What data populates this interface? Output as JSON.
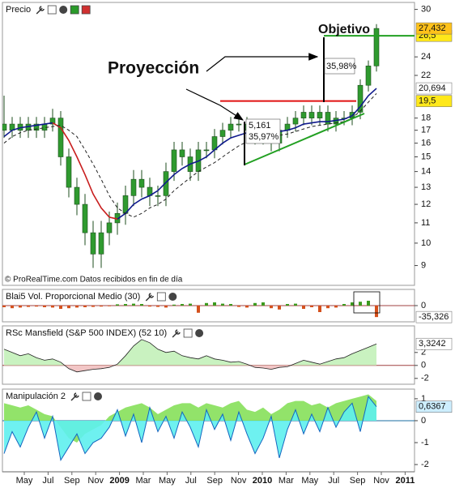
{
  "time_axis": [
    "May",
    "Jul",
    "Sep",
    "Nov",
    "2009",
    "Mar",
    "May",
    "Jul",
    "Sep",
    "Nov",
    "2010",
    "Mar",
    "May",
    "Jul",
    "Sep",
    "Nov",
    "2011"
  ],
  "chart_data": [
    {
      "type": "candlestick",
      "title": "Precio",
      "log_scale": true,
      "ylim": [
        8.2,
        31
      ],
      "yticks": [
        9,
        10,
        11,
        12,
        13,
        14,
        15,
        16,
        17,
        18,
        22,
        24,
        30
      ],
      "candles": {
        "color": "#2f9a2f",
        "open": [
          17.5,
          17,
          17.5,
          17,
          17.5,
          17,
          17.5,
          18,
          15,
          13,
          12,
          10.5,
          9.5,
          10.5,
          11,
          11.5,
          12.5,
          13.5,
          13,
          12.5,
          12.5,
          14,
          15.5,
          15,
          14,
          15.5,
          15.5,
          16.5,
          17,
          17.5,
          17.5,
          17,
          16.5,
          17,
          16,
          17,
          17.5,
          18,
          18.5,
          18,
          18.5,
          17.5,
          18,
          18,
          18.5,
          21,
          23
        ],
        "high": [
          20,
          18.1,
          18.1,
          18.1,
          18.1,
          18.1,
          18.8,
          18.6,
          15.6,
          13.6,
          12.6,
          11.1,
          11.1,
          11.6,
          12.1,
          13.1,
          14.1,
          14.1,
          13.6,
          13.1,
          14.6,
          16.1,
          16.1,
          15.6,
          16.1,
          16.1,
          17.1,
          17.6,
          18.1,
          18.1,
          18.1,
          17.6,
          17.6,
          17.6,
          17.6,
          18.1,
          18.6,
          19.1,
          19.1,
          19.1,
          19.1,
          18.6,
          18.6,
          19.1,
          21.6,
          23.6,
          28
        ],
        "low": [
          16.4,
          16.4,
          16.4,
          16.4,
          16.4,
          16.4,
          16.9,
          14.4,
          12.4,
          11.4,
          9.9,
          8.9,
          8.9,
          9.9,
          10.4,
          10.9,
          11.9,
          12.4,
          11.9,
          11.9,
          11.9,
          13.4,
          14.4,
          13.4,
          13.4,
          14.9,
          14.9,
          15.9,
          16.4,
          16.9,
          16.4,
          15.9,
          15.9,
          15.4,
          15.4,
          16.4,
          16.9,
          17.4,
          17.4,
          17.4,
          16.9,
          16.9,
          17.4,
          17.4,
          17.9,
          20.4,
          22.4
        ],
        "close": [
          17,
          17.5,
          17,
          17.5,
          17,
          17.5,
          18,
          15,
          13,
          12,
          10.5,
          9.5,
          10.5,
          11,
          11.5,
          12.5,
          13.5,
          13,
          12.5,
          12.5,
          14,
          15.5,
          15,
          14,
          15.5,
          15.5,
          16.5,
          17,
          17.5,
          17.5,
          17,
          16.5,
          17,
          16,
          17,
          17.5,
          18,
          18.5,
          18,
          18.5,
          17.5,
          18,
          18,
          18.5,
          21,
          23,
          27.432
        ],
        "value_labels": [
          null,
          null,
          null,
          null,
          null,
          null,
          null,
          null,
          null,
          null,
          null,
          null,
          null,
          null,
          null,
          null,
          null,
          null,
          null,
          null,
          null,
          null,
          null,
          null,
          null,
          null,
          null,
          null,
          null,
          null,
          null,
          null,
          null,
          null,
          null,
          null,
          null,
          null,
          null,
          null,
          null,
          null,
          null,
          null,
          null,
          null,
          "27,432"
        ]
      },
      "lines": [
        {
          "color": "#101a8c",
          "values": [
            16.5,
            17,
            17.2,
            17.3,
            17.4,
            17.5,
            17.6,
            null,
            null,
            null,
            null,
            null,
            null,
            null,
            11.2,
            11.5,
            12,
            12.3,
            12.5,
            12.8,
            13.3,
            13.8,
            14.2,
            14.5,
            14.7,
            15,
            15.5,
            16,
            16.4,
            16.6,
            16.8,
            16.8,
            16.8,
            16.8,
            16.9,
            17,
            17.2,
            17.5,
            17.6,
            17.7,
            17.7,
            17.8,
            17.9,
            18.2,
            19,
            20,
            20.694
          ],
          "value_labels": [
            null,
            null,
            null,
            null,
            null,
            null,
            null,
            null,
            null,
            null,
            null,
            null,
            null,
            null,
            null,
            null,
            null,
            null,
            null,
            null,
            null,
            null,
            null,
            null,
            null,
            null,
            null,
            null,
            null,
            null,
            null,
            null,
            null,
            null,
            null,
            null,
            null,
            null,
            null,
            null,
            null,
            null,
            null,
            null,
            null,
            null,
            "20,694"
          ]
        },
        {
          "color": "#c81e1e",
          "values": [
            null,
            null,
            null,
            null,
            null,
            null,
            17.6,
            17.2,
            16.2,
            15,
            13.8,
            12.6,
            11.8,
            11.3,
            11.2,
            null,
            null,
            null,
            null,
            null,
            null,
            null,
            null,
            null,
            null,
            null,
            null,
            null,
            null,
            null,
            null,
            null,
            null,
            null,
            null,
            null,
            null,
            null,
            null,
            null,
            null,
            null,
            null,
            null,
            null,
            null,
            null
          ]
        },
        {
          "color": "#222222",
          "dash": true,
          "values": [
            16,
            16.5,
            16.8,
            17,
            17.1,
            17.2,
            17.3,
            17.4,
            17,
            16.5,
            15.5,
            14.5,
            13.5,
            12.5,
            11.8,
            11.5,
            11.3,
            11.5,
            11.8,
            12,
            12.3,
            12.8,
            13.2,
            13.6,
            14,
            14.3,
            14.6,
            15,
            15.4,
            15.8,
            16.1,
            16.3,
            16.5,
            16.6,
            16.6,
            16.7,
            16.9,
            17.1,
            17.3,
            17.4,
            17.5,
            17.6,
            17.7,
            18,
            18.6,
            19.4,
            20.2
          ]
        }
      ],
      "levels": [
        {
          "value": 19.5,
          "label": "19,5",
          "color": "#e01010"
        },
        {
          "value": 26.5,
          "label": "26,5",
          "color": "#22a022"
        }
      ],
      "annotations": [
        "Proyección",
        "Objetivo",
        "35,98%",
        "5,161",
        "35,97%"
      ],
      "watermark": "© ProRealTime.com  Datos recibidos en fin de día"
    },
    {
      "type": "bar",
      "title": "Blai5 Vol. Proporcional Medio (30)",
      "ylim": [
        -50,
        50
      ],
      "yticks": [
        0
      ],
      "colors": {
        "positive": "#3c9a1e",
        "negative": "#d4501c"
      },
      "values": [
        -5,
        -8,
        -6,
        -4,
        -3,
        -5,
        -6,
        -10,
        -8,
        -6,
        -5,
        -4,
        -3,
        -2,
        4,
        5,
        6,
        5,
        -3,
        -4,
        -6,
        3,
        5,
        6,
        -22,
        8,
        10,
        6,
        5,
        -4,
        -6,
        8,
        10,
        -8,
        -12,
        5,
        6,
        -10,
        -5,
        -20,
        -8,
        -6,
        5,
        10,
        12,
        15,
        -35.326
      ],
      "value_labels": [
        null,
        null,
        null,
        null,
        null,
        null,
        null,
        null,
        null,
        null,
        null,
        null,
        null,
        null,
        null,
        null,
        null,
        null,
        null,
        null,
        null,
        null,
        null,
        null,
        null,
        null,
        null,
        null,
        null,
        null,
        null,
        null,
        null,
        null,
        null,
        null,
        null,
        null,
        null,
        null,
        null,
        null,
        null,
        null,
        null,
        null,
        "-35,326"
      ]
    },
    {
      "type": "area",
      "title": "RSc Mansfield (S&P 500 INDEX) (52 10)",
      "ylim": [
        -2.9,
        6.1
      ],
      "yticks": [
        -2,
        0,
        2
      ],
      "series": [
        {
          "color": "#222222",
          "fill_above": "#c9f2c0",
          "fill_below": "#f2c6c6",
          "values": [
            2.5,
            2,
            1.5,
            1.8,
            1.2,
            0.8,
            1,
            0.5,
            -0.5,
            -1,
            -0.8,
            -0.6,
            -0.5,
            -0.3,
            0.2,
            1.5,
            3,
            4,
            3.5,
            2.5,
            2,
            2.2,
            1.5,
            1.2,
            1,
            1.5,
            1,
            0.8,
            0.5,
            0.6,
            0.2,
            -0.3,
            -0.4,
            -0.6,
            -0.3,
            -0.2,
            0.3,
            0.8,
            0.5,
            0.2,
            0.6,
            1,
            1.2,
            1.8,
            2.3,
            2.8,
            3.3242
          ],
          "value_labels": [
            null,
            null,
            null,
            null,
            null,
            null,
            null,
            null,
            null,
            null,
            null,
            null,
            null,
            null,
            null,
            null,
            null,
            null,
            null,
            null,
            null,
            null,
            null,
            null,
            null,
            null,
            null,
            null,
            null,
            null,
            null,
            null,
            null,
            null,
            null,
            null,
            null,
            null,
            null,
            null,
            null,
            null,
            null,
            null,
            null,
            null,
            "3,3242"
          ]
        }
      ]
    },
    {
      "type": "area",
      "title": "Manipulación 2",
      "ylim": [
        -2.33,
        1.44
      ],
      "yticks": [
        -2,
        -1,
        0,
        1
      ],
      "series": [
        {
          "color": "#86e05a",
          "values": [
            0.8,
            0.7,
            0.6,
            0.7,
            0.5,
            0.3,
            0.2,
            -0.3,
            -0.8,
            -1,
            -0.6,
            -0.4,
            -0.2,
            0.2,
            0.4,
            0.6,
            0.7,
            0.8,
            0.6,
            0.3,
            0.5,
            0.7,
            0.8,
            0.8,
            0.6,
            0.8,
            0.7,
            0.6,
            0.8,
            0.9,
            0.5,
            0.4,
            0.6,
            0.3,
            0.5,
            0.8,
            0.9,
            0.9,
            0.7,
            0.8,
            0.6,
            0.8,
            0.9,
            1,
            1.1,
            1.2,
            0.9
          ]
        },
        {
          "color": "#5ef0ee",
          "line": "#1565c0",
          "values": [
            -1.5,
            -0.5,
            -1.2,
            -0.3,
            0.4,
            -0.8,
            0.2,
            -1.8,
            -1.2,
            -0.6,
            -1.5,
            -1,
            -0.8,
            -0.3,
            0.5,
            -0.7,
            0.3,
            -1,
            0.6,
            -0.5,
            0.2,
            -0.8,
            0.4,
            -0.3,
            -1.2,
            0.5,
            -0.4,
            0.3,
            -0.9,
            0.4,
            -0.6,
            -1.5,
            -0.8,
            0.2,
            -1.7,
            -0.4,
            0.5,
            -0.6,
            0.3,
            -0.5,
            0.6,
            -0.3,
            0.4,
            0.8,
            -0.5,
            1.1,
            0.6367
          ],
          "value_labels": [
            null,
            null,
            null,
            null,
            null,
            null,
            null,
            null,
            null,
            null,
            null,
            null,
            null,
            null,
            null,
            null,
            null,
            null,
            null,
            null,
            null,
            null,
            null,
            null,
            null,
            null,
            null,
            null,
            null,
            null,
            null,
            null,
            null,
            null,
            null,
            null,
            null,
            null,
            null,
            null,
            null,
            null,
            null,
            null,
            null,
            null,
            "0,6367"
          ]
        }
      ]
    }
  ]
}
